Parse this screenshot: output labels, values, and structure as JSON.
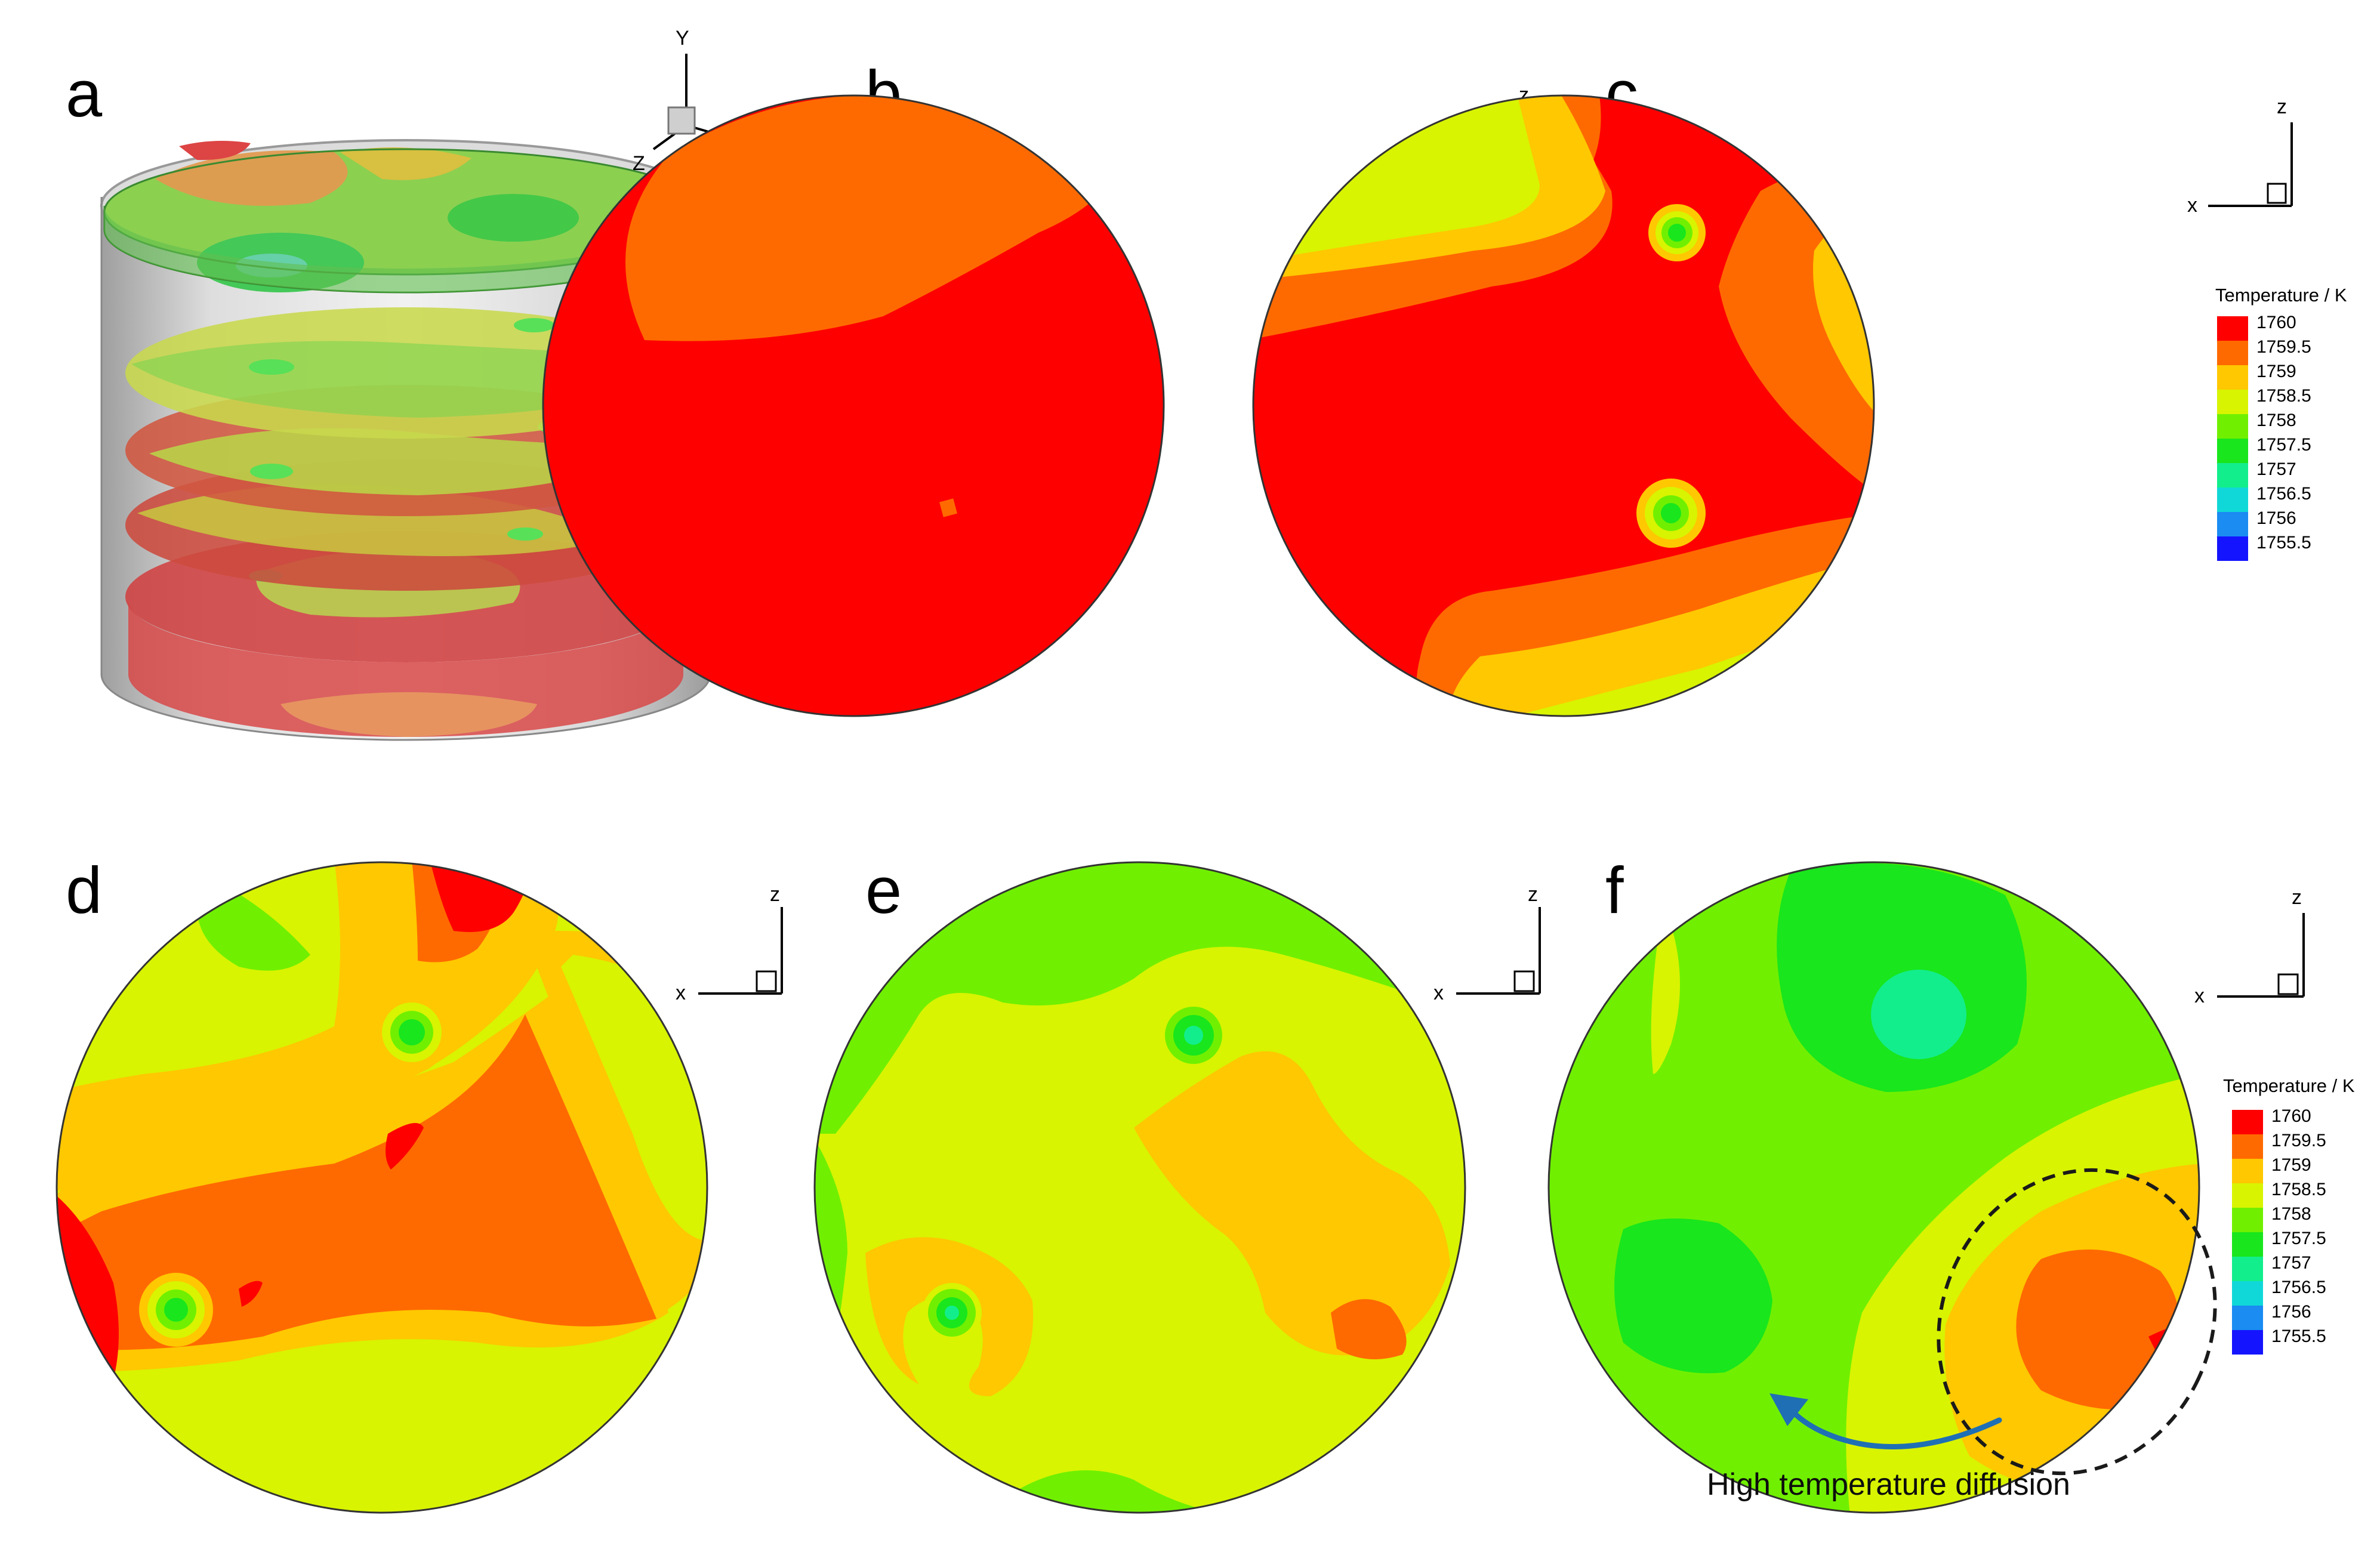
{
  "panels": [
    {
      "id": "a",
      "label": "a"
    },
    {
      "id": "b",
      "label": "b"
    },
    {
      "id": "c",
      "label": "c"
    },
    {
      "id": "d",
      "label": "d"
    },
    {
      "id": "e",
      "label": "e"
    },
    {
      "id": "f",
      "label": "f"
    }
  ],
  "axes": {
    "x": "X",
    "y": "Y",
    "z": "Z",
    "x_small": "x",
    "z_small": "z"
  },
  "legend": {
    "title": "Temperature / K",
    "levels": [
      "1760",
      "1759.5",
      "1759",
      "1758.5",
      "1758",
      "1757.5",
      "1757",
      "1756.5",
      "1756",
      "1755.5"
    ],
    "colors": [
      "#ff0000",
      "#ff6a00",
      "#ffc800",
      "#d8f400",
      "#70f000",
      "#19e61c",
      "#12ee8c",
      "#10d8d8",
      "#1a8cf2",
      "#1414ff"
    ]
  },
  "annotation": {
    "text": "High temperature diffusion"
  },
  "colors": {
    "circle_outline": "#333333",
    "arrow": "#1f6fb5",
    "cylinder": "#c8c8c8"
  }
}
